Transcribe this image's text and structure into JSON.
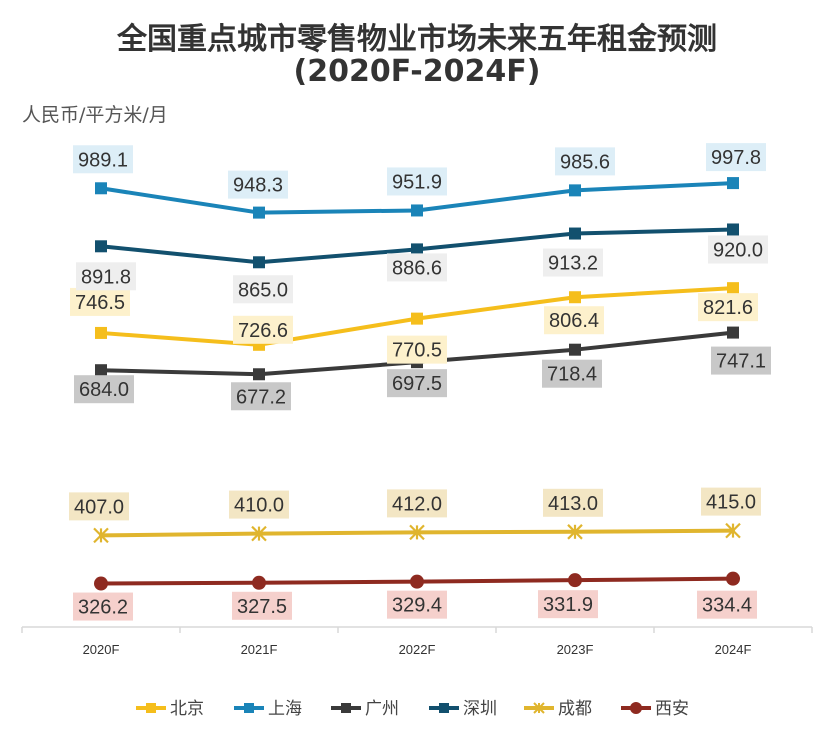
{
  "chart_data": {
    "type": "line",
    "title_line1": "全国重点城市零售物业市场未来五年租金预测",
    "title_line2": "(2020F-2024F)",
    "ylabel": "人民币/平方米/月",
    "xlabel": "",
    "categories": [
      "2020F",
      "2021F",
      "2022F",
      "2023F",
      "2024F"
    ],
    "ylim": [
      250,
      1060
    ],
    "grid": false,
    "legend_position": "bottom",
    "series": [
      {
        "name": "北京",
        "values": [
          746.5,
          726.6,
          770.5,
          806.4,
          821.6
        ],
        "color": "#F5BE1C",
        "label_bg": "#FDF1CC",
        "marker": "square"
      },
      {
        "name": "上海",
        "values": [
          989.1,
          948.3,
          951.9,
          985.6,
          997.8
        ],
        "color": "#1A84B8",
        "label_bg": "#DDEEF7",
        "marker": "square"
      },
      {
        "name": "广州",
        "values": [
          684.0,
          677.2,
          697.5,
          718.4,
          747.1
        ],
        "color": "#3A3A3A",
        "label_bg": "#C8C8C8",
        "marker": "square"
      },
      {
        "name": "深圳",
        "values": [
          891.8,
          865.0,
          886.6,
          913.2,
          920.0
        ],
        "color": "#12506E",
        "label_bg": "#EEEEEE",
        "marker": "square"
      },
      {
        "name": "成都",
        "values": [
          407.0,
          410.0,
          412.0,
          413.0,
          415.0
        ],
        "color": "#E0B52E",
        "label_bg": "#F3E6C4",
        "marker": "star"
      },
      {
        "name": "西安",
        "values": [
          326.2,
          327.5,
          329.4,
          331.9,
          334.4
        ],
        "color": "#8E2A20",
        "label_bg": "#F5D0CC",
        "marker": "circle"
      }
    ]
  }
}
